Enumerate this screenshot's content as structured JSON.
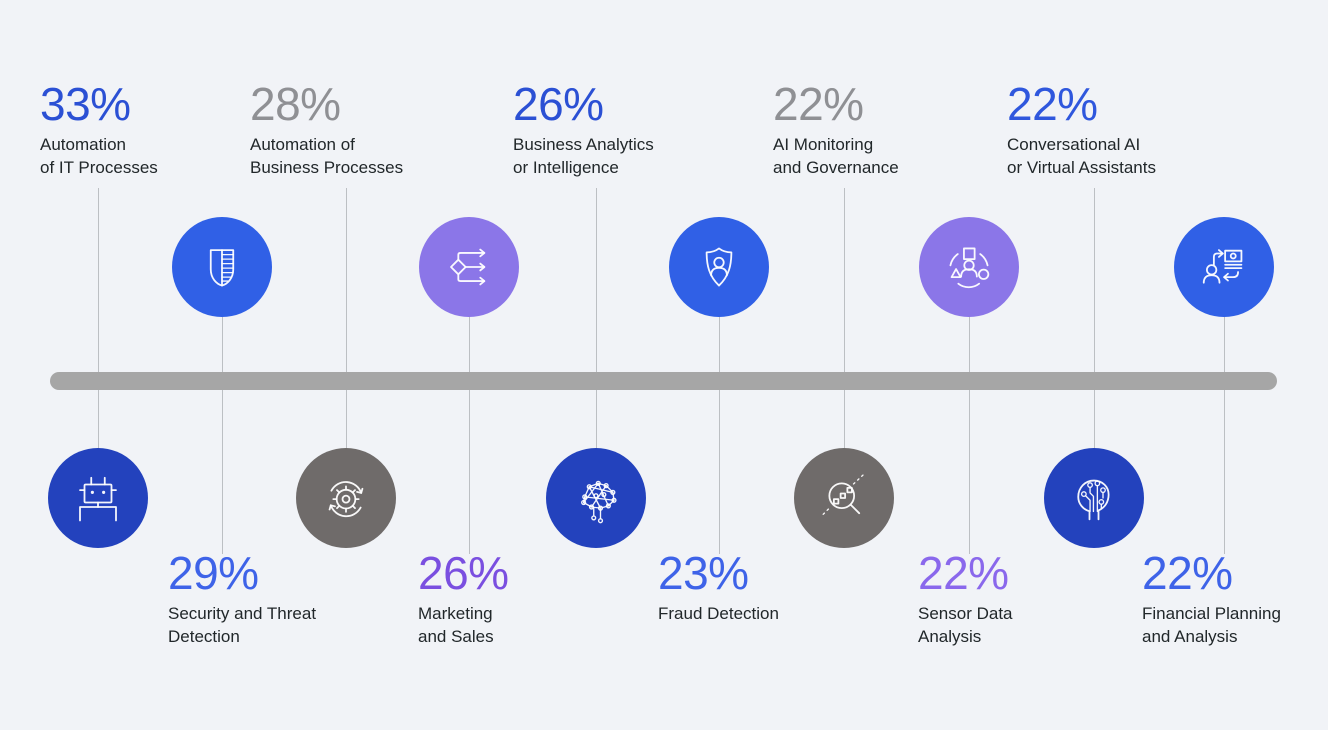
{
  "colors": {
    "background": "#f1f3f7",
    "timeline_bar": "#a6a6a6",
    "connector_line": "#bcbfc3",
    "label_text": "#21272a",
    "circle_blue": "#3060e6",
    "circle_navy": "#2342bd",
    "circle_purple": "#8b76e8",
    "circle_gray": "#6f6b6a"
  },
  "items": [
    {
      "percent": "33%",
      "percent_color": "#2b50d4",
      "label_lines": [
        "Automation",
        "of IT Processes"
      ],
      "text_side": "top",
      "icon": "robot-icon",
      "circle_color": "#2342bd"
    },
    {
      "percent": "29%",
      "percent_color": "#3e63e8",
      "label_lines": [
        "Security and Threat",
        "Detection"
      ],
      "text_side": "bottom",
      "icon": "shield-stripes-icon",
      "circle_color": "#3060e6"
    },
    {
      "percent": "28%",
      "percent_color": "#8f9094",
      "label_lines": [
        "Automation of",
        "Business Processes"
      ],
      "text_side": "top",
      "icon": "process-automation-icon",
      "circle_color": "#6f6b6a"
    },
    {
      "percent": "26%",
      "percent_color": "#7a4fe0",
      "label_lines": [
        "Marketing",
        "and Sales"
      ],
      "text_side": "bottom",
      "icon": "branch-arrows-icon",
      "circle_color": "#8b76e8"
    },
    {
      "percent": "26%",
      "percent_color": "#2b50d4",
      "label_lines": [
        "Business Analytics",
        "or Intelligence"
      ],
      "text_side": "top",
      "icon": "neural-brain-icon",
      "circle_color": "#2342bd"
    },
    {
      "percent": "23%",
      "percent_color": "#3e63e8",
      "label_lines": [
        "Fraud Detection"
      ],
      "text_side": "bottom",
      "icon": "shield-user-icon",
      "circle_color": "#3060e6"
    },
    {
      "percent": "22%",
      "percent_color": "#8f9094",
      "label_lines": [
        "AI Monitoring",
        "and Governance"
      ],
      "text_side": "top",
      "icon": "data-magnifier-icon",
      "circle_color": "#6f6b6a"
    },
    {
      "percent": "22%",
      "percent_color": "#8a68ec",
      "label_lines": [
        "Sensor Data",
        "Analysis"
      ],
      "text_side": "bottom",
      "icon": "person-shapes-icon",
      "circle_color": "#8b76e8"
    },
    {
      "percent": "22%",
      "percent_color": "#2f57dd",
      "label_lines": [
        "Conversational AI",
        "or Virtual Assistants"
      ],
      "text_side": "top",
      "icon": "head-circuit-icon",
      "circle_color": "#2342bd"
    },
    {
      "percent": "22%",
      "percent_color": "#3e63e8",
      "label_lines": [
        "Financial Planning",
        "and Analysis"
      ],
      "text_side": "bottom",
      "icon": "money-exchange-icon",
      "circle_color": "#3060e6"
    }
  ],
  "chart_data": {
    "type": "table",
    "layout": "alternating horizontal timeline pictogram, items above and below a gray bar",
    "unit": "%",
    "categories": [
      "Automation of IT Processes",
      "Security and Threat Detection",
      "Automation of Business Processes",
      "Marketing and Sales",
      "Business Analytics or Intelligence",
      "Fraud Detection",
      "AI Monitoring and Governance",
      "Sensor Data Analysis",
      "Conversational AI or Virtual Assistants",
      "Financial Planning and Analysis"
    ],
    "values": [
      33,
      29,
      28,
      26,
      26,
      23,
      22,
      22,
      22,
      22
    ]
  }
}
